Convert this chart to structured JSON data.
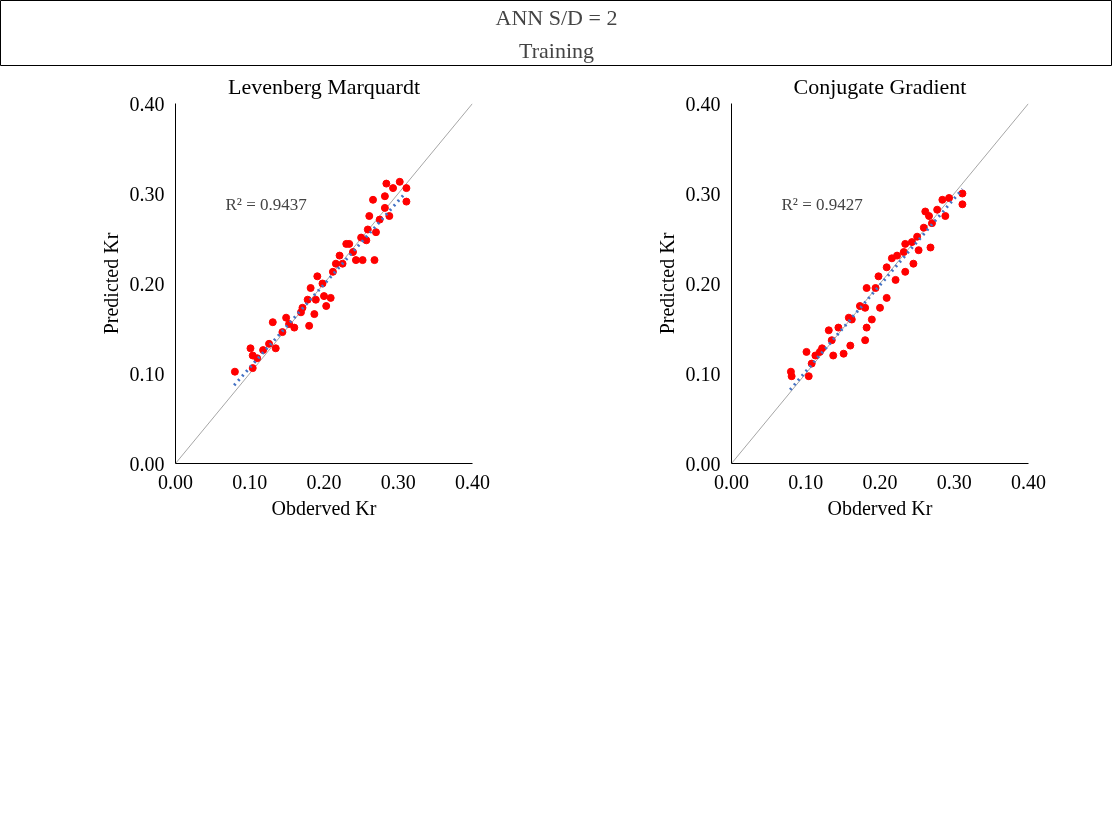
{
  "chart_data": [
    {
      "type": "other",
      "title": "ANN S/D = 2",
      "subtitle": "Training"
    },
    {
      "type": "scatter",
      "title": "Levenberg Marquardt",
      "xlabel": "Obderved Kr",
      "ylabel": "Predicted Kr",
      "annotations": [
        "R² = 0.9437"
      ],
      "xlim": [
        0,
        0.4
      ],
      "ylim": [
        0,
        0.4
      ],
      "xticks": [
        {
          "value": 0,
          "label": "0.00"
        },
        {
          "value": 0.1,
          "label": "0.10"
        },
        {
          "value": 0.2,
          "label": "0.20"
        },
        {
          "value": 0.3,
          "label": "0.30"
        },
        {
          "value": 0.4,
          "label": "0.40"
        }
      ],
      "yticks": [
        {
          "value": 0,
          "label": "0.00"
        },
        {
          "value": 0.1,
          "label": "0.10"
        },
        {
          "value": 0.2,
          "label": "0.20"
        },
        {
          "value": 0.3,
          "label": "0.30"
        },
        {
          "value": 0.4,
          "label": "0.40"
        }
      ],
      "grid": false,
      "series": [
        {
          "type": "line",
          "color": "#a6a6a6",
          "line_style": "solid",
          "x": [
            0,
            0.4
          ],
          "values": [
            0,
            0.4
          ]
        },
        {
          "type": "scatter",
          "color": "#ff0000",
          "marker": "circle",
          "x": [
            0.08,
            0.101,
            0.104,
            0.104,
            0.118,
            0.131,
            0.135,
            0.149,
            0.144,
            0.16,
            0.169,
            0.18,
            0.187,
            0.182,
            0.191,
            0.198,
            0.203,
            0.209,
            0.178,
            0.189,
            0.212,
            0.221,
            0.225,
            0.234,
            0.243,
            0.252,
            0.239,
            0.25,
            0.259,
            0.261,
            0.268,
            0.266,
            0.275,
            0.282,
            0.284,
            0.293,
            0.302,
            0.311,
            0.311,
            0.288,
            0.27,
            0.257,
            0.23,
            0.216,
            0.2,
            0.171,
            0.153,
            0.126,
            0.11,
            0.282
          ],
          "values": [
            0.102,
            0.128,
            0.12,
            0.106,
            0.126,
            0.157,
            0.128,
            0.162,
            0.146,
            0.151,
            0.168,
            0.153,
            0.166,
            0.195,
            0.208,
            0.2,
            0.175,
            0.184,
            0.182,
            0.182,
            0.213,
            0.231,
            0.222,
            0.244,
            0.226,
            0.226,
            0.235,
            0.251,
            0.26,
            0.275,
            0.226,
            0.293,
            0.271,
            0.284,
            0.311,
            0.306,
            0.313,
            0.306,
            0.291,
            0.275,
            0.257,
            0.248,
            0.244,
            0.222,
            0.186,
            0.173,
            0.155,
            0.133,
            0.117,
            0.297
          ]
        },
        {
          "type": "line",
          "color": "#4472c4",
          "line_style": "dotted",
          "x": [
            0.079,
            0.309
          ],
          "values": [
            0.087,
            0.3
          ]
        }
      ]
    },
    {
      "type": "scatter",
      "title": "Conjugate Gradient",
      "xlabel": "Obderved Kr",
      "ylabel": "Predicted Kr",
      "annotations": [
        "R² = 0.9427"
      ],
      "xlim": [
        0,
        0.4
      ],
      "ylim": [
        0,
        0.4
      ],
      "xticks": [
        {
          "value": 0,
          "label": "0.00"
        },
        {
          "value": 0.1,
          "label": "0.10"
        },
        {
          "value": 0.2,
          "label": "0.20"
        },
        {
          "value": 0.3,
          "label": "0.30"
        },
        {
          "value": 0.4,
          "label": "0.40"
        }
      ],
      "yticks": [
        {
          "value": 0,
          "label": "0.00"
        },
        {
          "value": 0.1,
          "label": "0.10"
        },
        {
          "value": 0.2,
          "label": "0.20"
        },
        {
          "value": 0.3,
          "label": "0.30"
        },
        {
          "value": 0.4,
          "label": "0.40"
        }
      ],
      "grid": false,
      "series": [
        {
          "type": "line",
          "color": "#a6a6a6",
          "line_style": "solid",
          "x": [
            0,
            0.4
          ],
          "values": [
            0,
            0.4
          ]
        },
        {
          "type": "scatter",
          "color": "#ff0000",
          "marker": "circle",
          "x": [
            0.08,
            0.081,
            0.101,
            0.104,
            0.108,
            0.119,
            0.131,
            0.137,
            0.151,
            0.16,
            0.144,
            0.158,
            0.18,
            0.182,
            0.189,
            0.173,
            0.182,
            0.198,
            0.2,
            0.209,
            0.209,
            0.221,
            0.223,
            0.234,
            0.234,
            0.245,
            0.252,
            0.25,
            0.261,
            0.268,
            0.27,
            0.277,
            0.284,
            0.293,
            0.311,
            0.311,
            0.288,
            0.259,
            0.232,
            0.194,
            0.18,
            0.162,
            0.135,
            0.122,
            0.113,
            0.266,
            0.216,
            0.243
          ],
          "values": [
            0.102,
            0.097,
            0.124,
            0.097,
            0.111,
            0.124,
            0.148,
            0.12,
            0.122,
            0.131,
            0.151,
            0.162,
            0.137,
            0.151,
            0.16,
            0.175,
            0.195,
            0.208,
            0.173,
            0.184,
            0.218,
            0.204,
            0.231,
            0.213,
            0.244,
            0.222,
            0.237,
            0.252,
            0.28,
            0.24,
            0.267,
            0.282,
            0.293,
            0.295,
            0.288,
            0.3,
            0.275,
            0.262,
            0.235,
            0.195,
            0.173,
            0.16,
            0.137,
            0.128,
            0.12,
            0.275,
            0.228,
            0.246
          ]
        },
        {
          "type": "line",
          "color": "#4472c4",
          "line_style": "dotted",
          "x": [
            0.079,
            0.311
          ],
          "values": [
            0.082,
            0.305
          ]
        }
      ]
    }
  ]
}
